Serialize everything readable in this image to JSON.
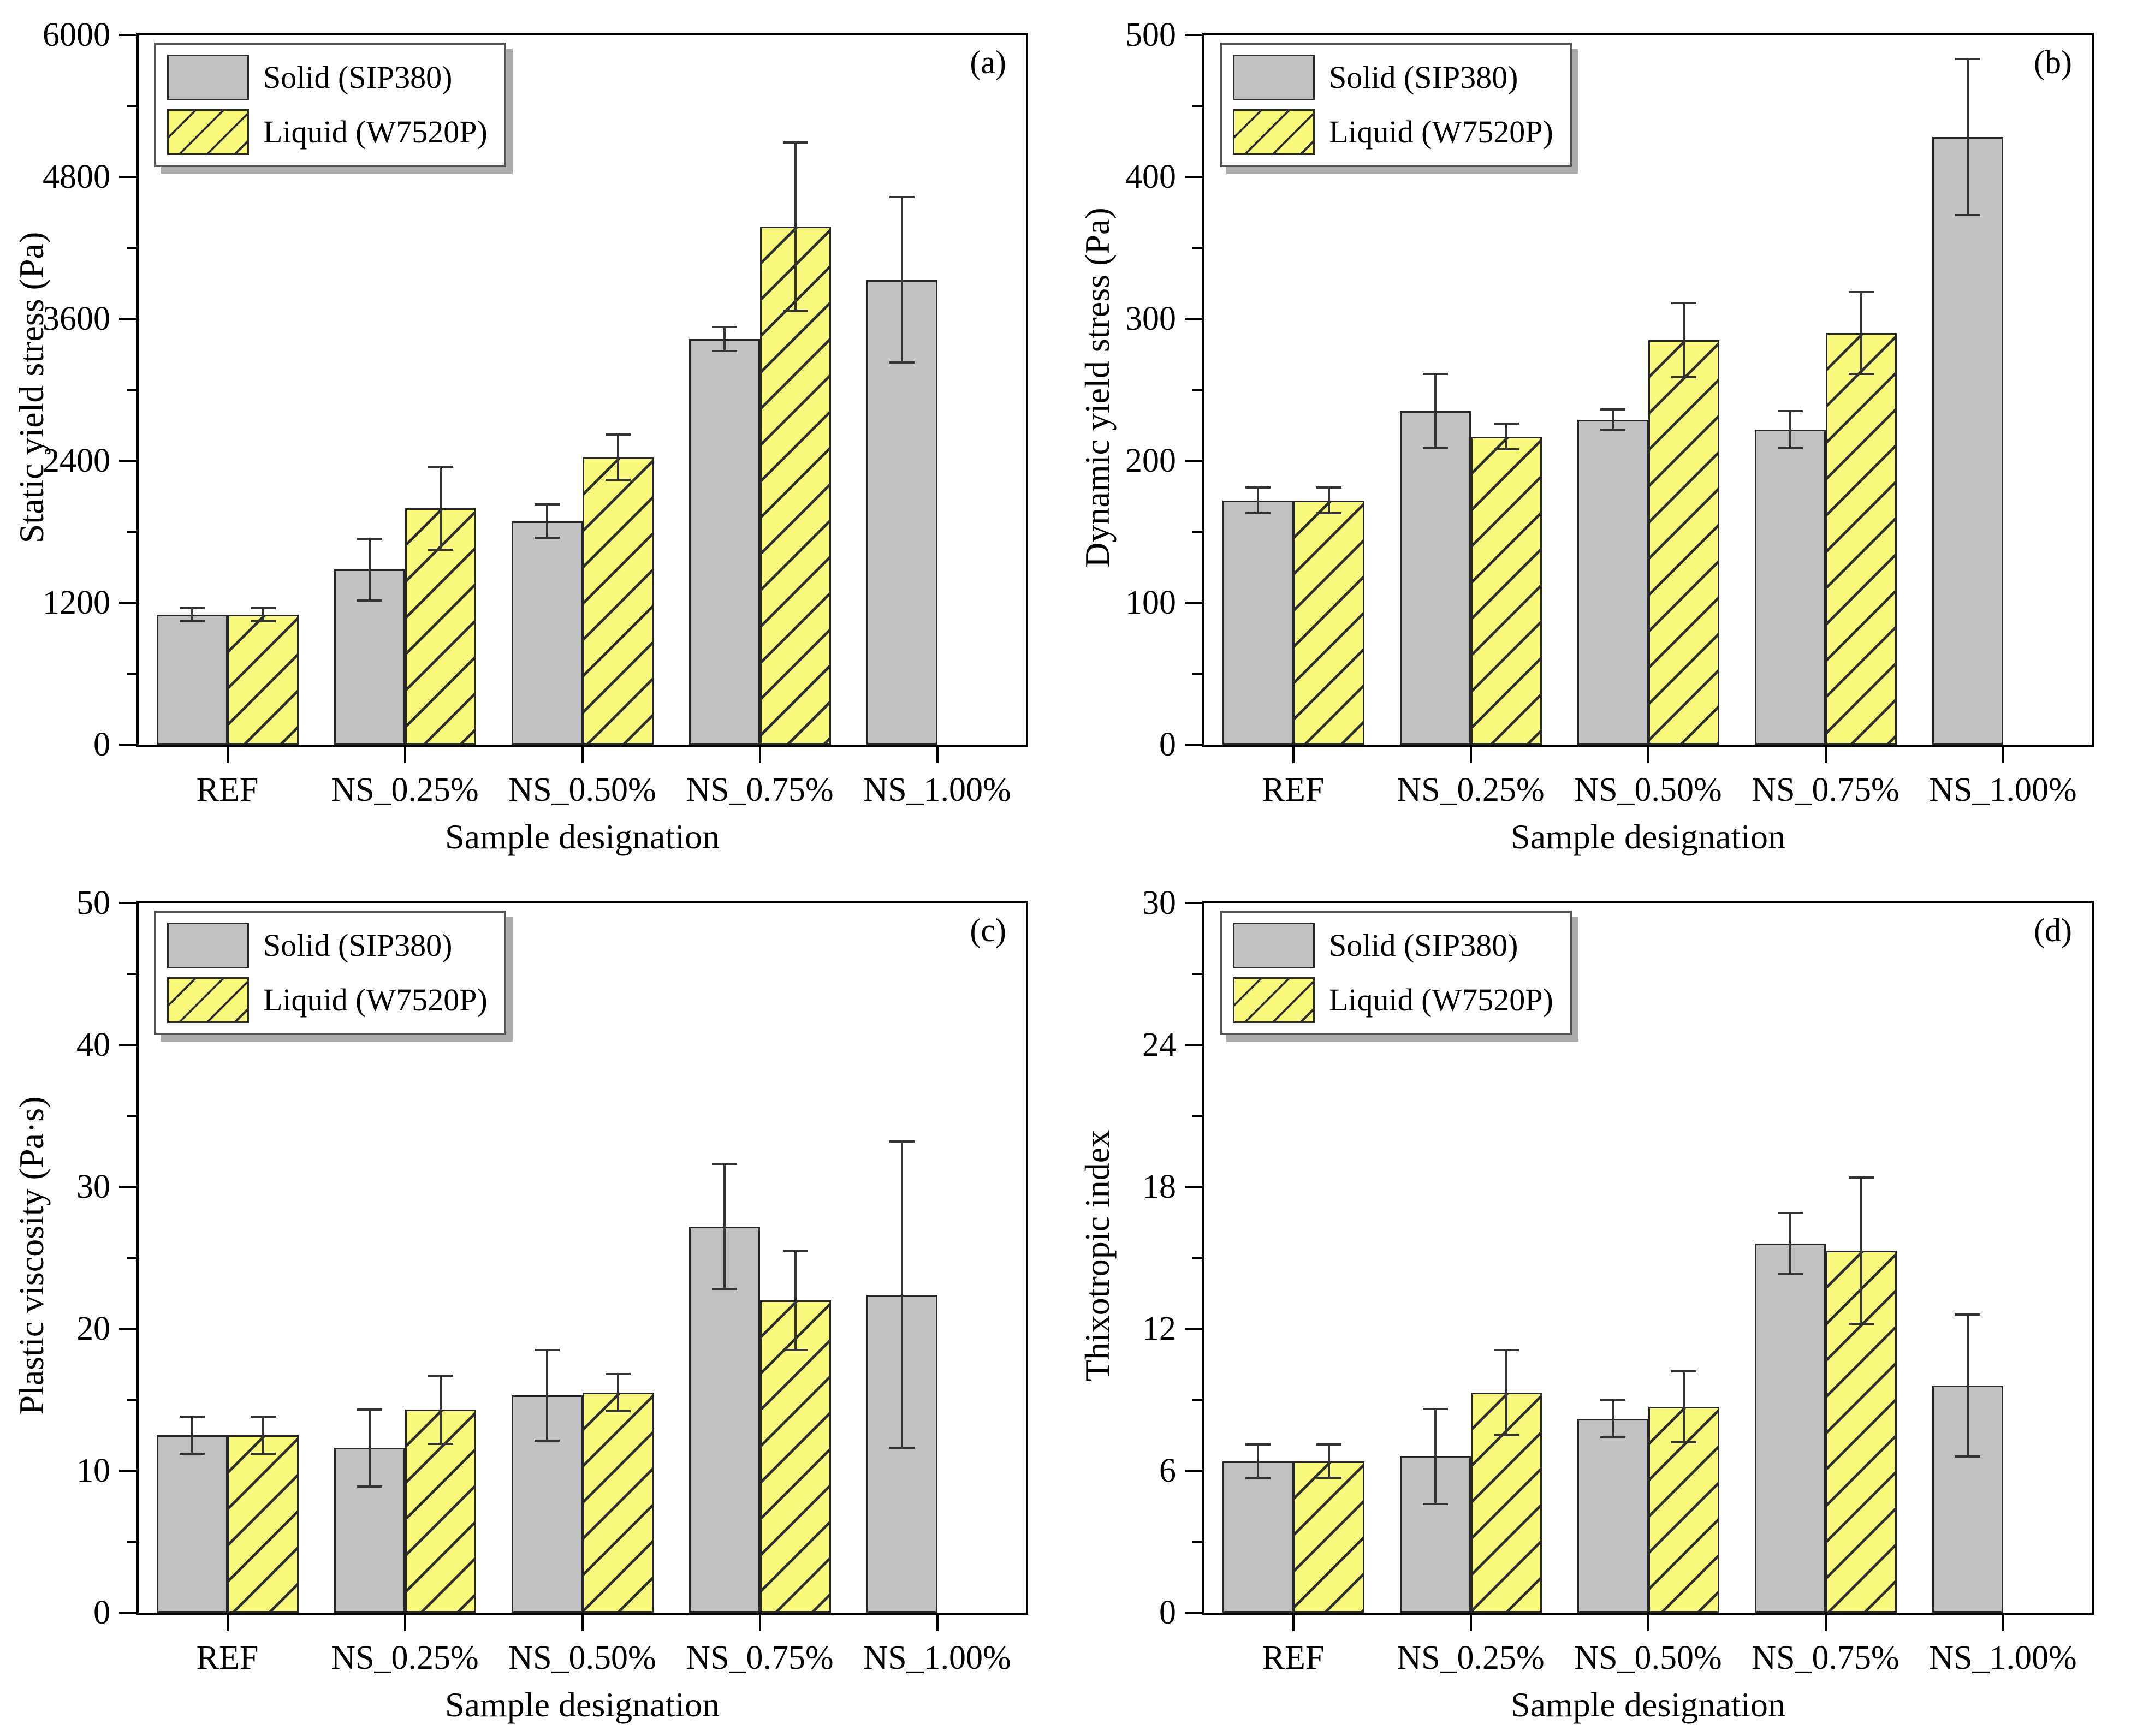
{
  "figure": {
    "background": "#ffffff",
    "panel_order": [
      "a",
      "b",
      "c",
      "d"
    ]
  },
  "style": {
    "solid_fill": "#c1c1c1",
    "liquid_fill": "#f9f97d",
    "bar_edge": "#262626",
    "hatch_line": "#2e2e2e",
    "axis_color": "#000000",
    "error_bar_color": "#333333"
  },
  "legend": {
    "items": [
      {
        "label": "Solid (SIP380)",
        "swatch": "solid-gray",
        "color": "#c1c1c1",
        "hatch": false
      },
      {
        "label": "Liquid (W7520P)",
        "swatch": "hatched-yellow",
        "color": "#f9f97d",
        "hatch": true
      }
    ]
  },
  "chart_data": [
    {
      "panel_label": "(a)",
      "type": "bar",
      "ylabel": "Static yield stress (Pa)",
      "xlabel": "Sample designation",
      "ylim": [
        0,
        6000
      ],
      "yticks": [
        0,
        1200,
        2400,
        3600,
        4800,
        6000
      ],
      "minor_tick_step": 600,
      "grid": false,
      "legend_position": "top-left",
      "categories": [
        "REF",
        "NS_0.25%",
        "NS_0.50%",
        "NS_0.75%",
        "NS_1.00%"
      ],
      "series": [
        {
          "name": "Solid (SIP380)",
          "values": [
            1100,
            1480,
            1890,
            3430,
            3930
          ],
          "errors": [
            55,
            260,
            140,
            100,
            700
          ]
        },
        {
          "name": "Liquid (W7520P)",
          "values": [
            1100,
            2000,
            2430,
            4380,
            null
          ],
          "errors": [
            55,
            350,
            190,
            710,
            null
          ]
        }
      ]
    },
    {
      "panel_label": "(b)",
      "type": "bar",
      "ylabel": "Dynamic yield stress (Pa)",
      "xlabel": "Sample designation",
      "ylim": [
        0,
        500
      ],
      "yticks": [
        0,
        100,
        200,
        300,
        400,
        500
      ],
      "minor_tick_step": 50,
      "grid": false,
      "legend_position": "top-left",
      "categories": [
        "REF",
        "NS_0.25%",
        "NS_0.50%",
        "NS_0.75%",
        "NS_1.00%"
      ],
      "series": [
        {
          "name": "Solid (SIP380)",
          "values": [
            172,
            235,
            229,
            222,
            428
          ],
          "errors": [
            9,
            26,
            7,
            13,
            55
          ]
        },
        {
          "name": "Liquid (W7520P)",
          "values": [
            172,
            217,
            285,
            290,
            null
          ],
          "errors": [
            9,
            9,
            26,
            29,
            null
          ]
        }
      ]
    },
    {
      "panel_label": "(c)",
      "type": "bar",
      "ylabel": "Plastic viscosity (Pa·s)",
      "xlabel": "Sample designation",
      "ylim": [
        0,
        50
      ],
      "yticks": [
        0,
        10,
        20,
        30,
        40,
        50
      ],
      "minor_tick_step": 5,
      "grid": false,
      "legend_position": "top-left",
      "categories": [
        "REF",
        "NS_0.25%",
        "NS_0.50%",
        "NS_0.75%",
        "NS_1.00%"
      ],
      "series": [
        {
          "name": "Solid (SIP380)",
          "values": [
            12.5,
            11.6,
            15.3,
            27.2,
            22.4
          ],
          "errors": [
            1.3,
            2.7,
            3.2,
            4.4,
            10.8
          ]
        },
        {
          "name": "Liquid (W7520P)",
          "values": [
            12.5,
            14.3,
            15.5,
            22.0,
            null
          ],
          "errors": [
            1.3,
            2.4,
            1.3,
            3.5,
            null
          ]
        }
      ]
    },
    {
      "panel_label": "(d)",
      "type": "bar",
      "ylabel": "Thixotropic index",
      "xlabel": "Sample designation",
      "ylim": [
        0,
        30
      ],
      "yticks": [
        0,
        6,
        12,
        18,
        24,
        30
      ],
      "minor_tick_step": 3,
      "grid": false,
      "legend_position": "top-left",
      "categories": [
        "REF",
        "NS_0.25%",
        "NS_0.50%",
        "NS_0.75%",
        "NS_1.00%"
      ],
      "series": [
        {
          "name": "Solid (SIP380)",
          "values": [
            6.4,
            6.6,
            8.2,
            15.6,
            9.6
          ],
          "errors": [
            0.7,
            2.0,
            0.8,
            1.3,
            3.0
          ]
        },
        {
          "name": "Liquid (W7520P)",
          "values": [
            6.4,
            9.3,
            8.7,
            15.3,
            null
          ],
          "errors": [
            0.7,
            1.8,
            1.5,
            3.1,
            null
          ]
        }
      ]
    }
  ]
}
